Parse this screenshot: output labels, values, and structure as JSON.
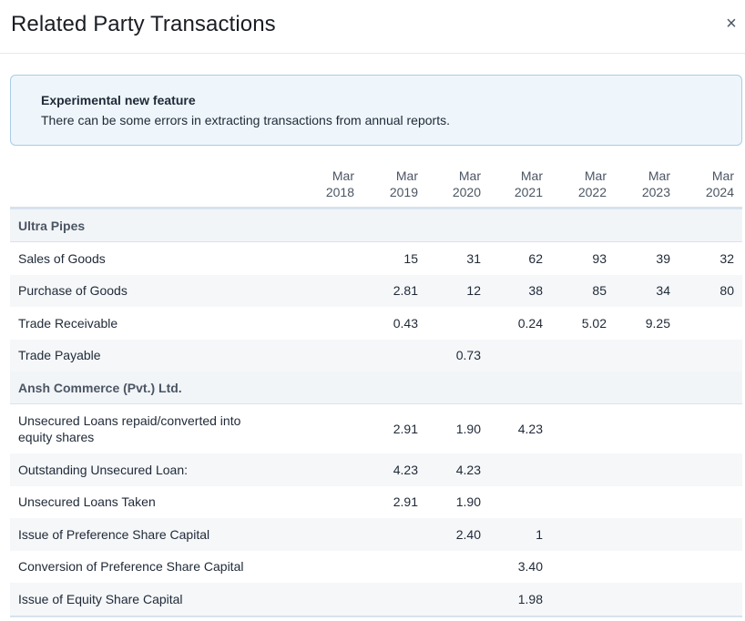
{
  "modal": {
    "title": "Related Party Transactions",
    "close_icon": "×"
  },
  "notice": {
    "title": "Experimental new feature",
    "text": "There can be some errors in extracting transactions from annual reports."
  },
  "table": {
    "columns": [
      {
        "month": "Mar",
        "year": "2018"
      },
      {
        "month": "Mar",
        "year": "2019"
      },
      {
        "month": "Mar",
        "year": "2020"
      },
      {
        "month": "Mar",
        "year": "2021"
      },
      {
        "month": "Mar",
        "year": "2022"
      },
      {
        "month": "Mar",
        "year": "2023"
      },
      {
        "month": "Mar",
        "year": "2024"
      }
    ],
    "sections": [
      {
        "name": "Ultra Pipes",
        "rows": [
          {
            "label": "Sales of Goods",
            "values": [
              "",
              "15",
              "31",
              "62",
              "93",
              "39",
              "32"
            ]
          },
          {
            "label": "Purchase of Goods",
            "values": [
              "",
              "2.81",
              "12",
              "38",
              "85",
              "34",
              "80"
            ]
          },
          {
            "label": "Trade Receivable",
            "values": [
              "",
              "0.43",
              "",
              "0.24",
              "5.02",
              "9.25",
              ""
            ]
          },
          {
            "label": "Trade Payable",
            "values": [
              "",
              "",
              "0.73",
              "",
              "",
              "",
              ""
            ]
          }
        ]
      },
      {
        "name": "Ansh Commerce (Pvt.) Ltd.",
        "rows": [
          {
            "label": "Unsecured Loans repaid/converted into equity shares",
            "values": [
              "",
              "2.91",
              "1.90",
              "4.23",
              "",
              "",
              ""
            ]
          },
          {
            "label": "Outstanding Unsecured Loan:",
            "values": [
              "",
              "4.23",
              "4.23",
              "",
              "",
              "",
              ""
            ]
          },
          {
            "label": "Unsecured Loans Taken",
            "values": [
              "",
              "2.91",
              "1.90",
              "",
              "",
              "",
              ""
            ]
          },
          {
            "label": "Issue of Preference Share Capital",
            "values": [
              "",
              "",
              "2.40",
              "1",
              "",
              "",
              ""
            ]
          },
          {
            "label": "Conversion of Preference Share Capital",
            "values": [
              "",
              "",
              "",
              "3.40",
              "",
              "",
              ""
            ]
          },
          {
            "label": "Issue of Equity Share Capital",
            "values": [
              "",
              "",
              "",
              "1.98",
              "",
              "",
              ""
            ]
          }
        ]
      }
    ]
  }
}
